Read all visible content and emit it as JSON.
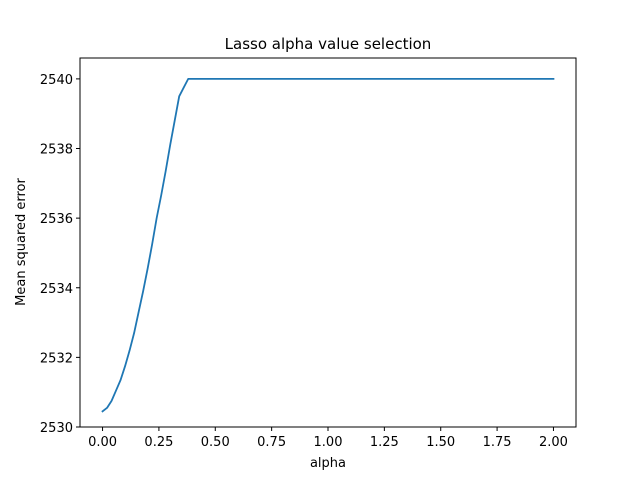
{
  "chart_data": {
    "type": "line",
    "title": "Lasso alpha value selection",
    "xlabel": "alpha",
    "ylabel": "Mean squared error",
    "xlim": [
      -0.1,
      2.1
    ],
    "ylim": [
      2530,
      2540.6
    ],
    "xticks": [
      0.0,
      0.25,
      0.5,
      0.75,
      1.0,
      1.25,
      1.5,
      1.75,
      2.0
    ],
    "xtick_labels": [
      "0.00",
      "0.25",
      "0.50",
      "0.75",
      "1.00",
      "1.25",
      "1.50",
      "1.75",
      "2.00"
    ],
    "yticks": [
      2530,
      2532,
      2534,
      2536,
      2538,
      2540
    ],
    "ytick_labels": [
      "2530",
      "2532",
      "2534",
      "2536",
      "2538",
      "2540"
    ],
    "grid": false,
    "series": [
      {
        "color": "#1f77b4",
        "x": [
          0.0,
          0.02,
          0.04,
          0.06,
          0.08,
          0.1,
          0.12,
          0.14,
          0.16,
          0.18,
          0.2,
          0.22,
          0.24,
          0.26,
          0.28,
          0.3,
          0.32,
          0.34,
          0.36,
          0.38,
          0.4,
          0.6,
          0.8,
          1.0,
          1.2,
          1.4,
          1.6,
          1.8,
          2.0
        ],
        "y": [
          2530.45,
          2530.55,
          2530.75,
          2531.05,
          2531.35,
          2531.75,
          2532.2,
          2532.7,
          2533.3,
          2533.9,
          2534.55,
          2535.25,
          2536.0,
          2536.65,
          2537.35,
          2538.1,
          2538.8,
          2539.5,
          2539.75,
          2540.0,
          2540.0,
          2540.0,
          2540.0,
          2540.0,
          2540.0,
          2540.0,
          2540.0,
          2540.0,
          2540.0
        ]
      }
    ]
  }
}
